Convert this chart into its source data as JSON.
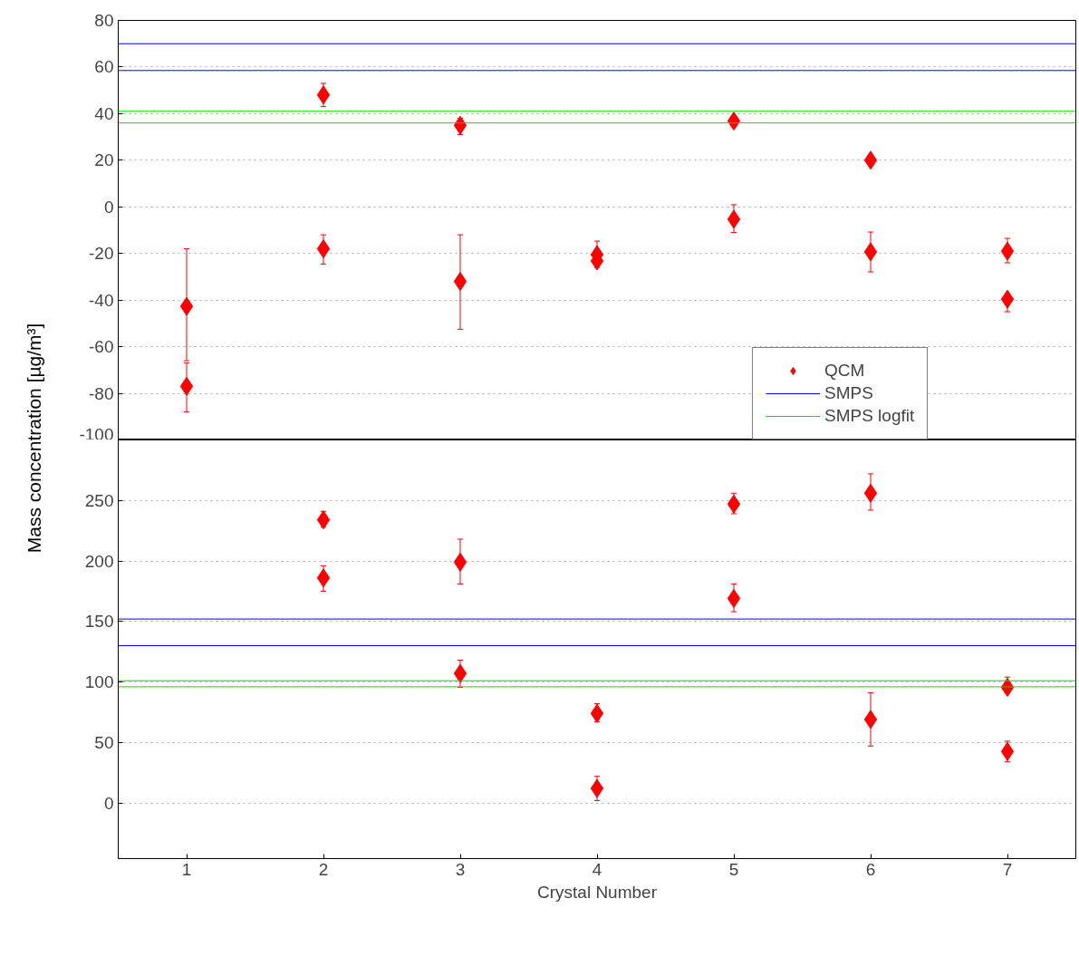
{
  "chart_data": [
    {
      "type": "scatter",
      "ylabel": "Mass concentration  [µg/m³]",
      "xlim": [
        0.5,
        7.5
      ],
      "ylim": [
        -100,
        80
      ],
      "xticks": [
        1,
        2,
        3,
        4,
        5,
        6,
        7
      ],
      "yticks": [
        -100,
        -80,
        -60,
        -40,
        -20,
        0,
        20,
        40,
        60,
        80
      ],
      "tick_labels": "y",
      "grid": "y",
      "legend": "bottom right",
      "marker": "diamond",
      "series": [
        {
          "name": "QCM",
          "color": "#ff0000",
          "x": [
            1,
            1,
            2,
            2,
            3,
            3,
            4,
            4,
            5,
            5,
            6,
            6,
            7,
            7
          ],
          "values": [
            -42.7,
            -77,
            48,
            -18,
            35,
            -32,
            -20.5,
            -23.2,
            36.8,
            -5.3,
            20,
            -19.3,
            -19,
            -39.6
          ],
          "errors": [
            [
              -66,
              -18
            ],
            [
              -88,
              -67
            ],
            [
              43,
              53
            ],
            [
              -24.5,
              -12
            ],
            [
              31,
              38
            ],
            [
              -52.5,
              -12
            ],
            [
              -24.4,
              -14.7
            ],
            [
              -26,
              -23.2
            ],
            [
              34.4,
              39
            ],
            [
              -11,
              0.9
            ],
            [
              18,
              22
            ],
            [
              -27.9,
              -10.8
            ],
            [
              -24,
              -13.5
            ],
            [
              -45,
              -39.6
            ]
          ]
        },
        {
          "name": "SMPS",
          "type": "line",
          "marker": "none",
          "color": "#0000ff",
          "x": [
            0.5,
            7.5
          ],
          "values": [
            70,
            70
          ]
        },
        {
          "type": "line",
          "marker": "none",
          "color": "#0000ff",
          "x": [
            0.5,
            7.5
          ],
          "values": [
            58.5,
            58.5
          ]
        },
        {
          "name": "SMPS logfit",
          "type": "line",
          "marker": "none",
          "color": "#00dd00",
          "x": [
            0.5,
            7.5
          ],
          "values": [
            41,
            41
          ]
        },
        {
          "type": "line",
          "marker": "none",
          "color": "#00dd00",
          "x": [
            0.5,
            7.5
          ],
          "values": [
            36,
            36
          ]
        }
      ]
    },
    {
      "type": "scatter",
      "xlabel": "Crystal Number",
      "xlim": [
        0.5,
        7.5
      ],
      "ylim": [
        -46,
        300
      ],
      "xticks": [
        1,
        2,
        3,
        4,
        5,
        6,
        7
      ],
      "yticks": [
        0,
        50,
        100,
        150,
        200,
        250
      ],
      "grid": "y",
      "marker": "diamond",
      "series": [
        {
          "color": "#ff0000",
          "x": [
            2,
            2,
            3,
            3,
            4,
            4,
            5,
            5,
            6,
            6,
            7,
            7
          ],
          "values": [
            234,
            186,
            199,
            107,
            74,
            12,
            247,
            169,
            256,
            69,
            95.5,
            42.5
          ],
          "errors": [
            [
              228,
              241
            ],
            [
              175,
              196
            ],
            [
              181,
              218
            ],
            [
              95.5,
              118
            ],
            [
              67,
              82
            ],
            [
              2,
              22
            ],
            [
              239,
              256
            ],
            [
              158,
              181
            ],
            [
              242,
              272
            ],
            [
              47,
              91
            ],
            [
              91,
              104
            ],
            [
              34,
              51
            ]
          ]
        },
        {
          "type": "line",
          "marker": "none",
          "color": "#0000ff",
          "x": [
            0.5,
            7.5
          ],
          "values": [
            152,
            152
          ]
        },
        {
          "type": "line",
          "marker": "none",
          "color": "#0000ff",
          "x": [
            0.5,
            7.5
          ],
          "values": [
            130,
            130
          ]
        },
        {
          "type": "line",
          "marker": "none",
          "color": "#00dd00",
          "x": [
            0.5,
            7.5
          ],
          "values": [
            101,
            101
          ]
        },
        {
          "type": "line",
          "marker": "none",
          "color": "#00dd00",
          "x": [
            0.5,
            7.5
          ],
          "values": [
            96,
            96
          ]
        }
      ]
    }
  ]
}
